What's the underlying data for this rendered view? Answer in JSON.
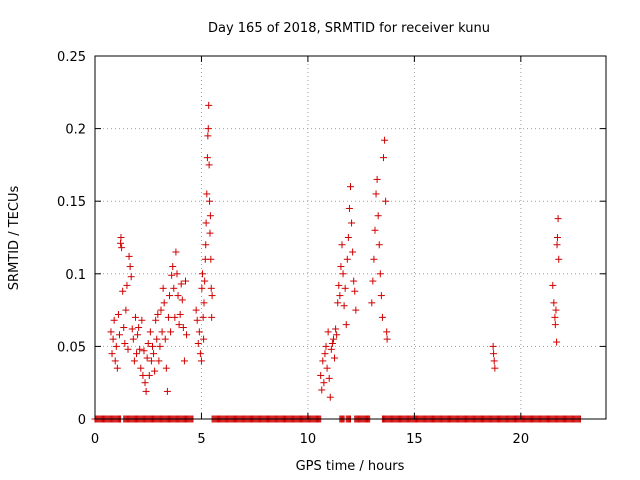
{
  "chart_data": {
    "type": "scatter",
    "title": "Day 165 of 2018, SRMTID for receiver kunu",
    "xlabel": "GPS time / hours",
    "ylabel": "SRMTID / TECUs",
    "xlim": [
      0,
      24
    ],
    "ylim": [
      0,
      0.25
    ],
    "xticks": [
      0,
      5,
      10,
      15,
      20
    ],
    "xtick_labels": [
      "0",
      "5",
      "10",
      "15",
      "20"
    ],
    "yticks": [
      0,
      0.05,
      0.1,
      0.15,
      0.2,
      0.25
    ],
    "ytick_labels": [
      "0",
      "0.05",
      "0.1",
      "0.15",
      "0.2",
      "0.25"
    ],
    "grid": true,
    "marker": "+",
    "color": "#d00000",
    "series": [
      {
        "name": "SRMTID",
        "points": [
          [
            0.75,
            0.06
          ],
          [
            0.8,
            0.045
          ],
          [
            0.85,
            0.055
          ],
          [
            0.9,
            0.068
          ],
          [
            0.95,
            0.04
          ],
          [
            1.0,
            0.05
          ],
          [
            1.05,
            0.035
          ],
          [
            1.1,
            0.072
          ],
          [
            1.15,
            0.058
          ],
          [
            1.2,
            0.121
          ],
          [
            1.22,
            0.125
          ],
          [
            1.25,
            0.118
          ],
          [
            1.3,
            0.088
          ],
          [
            1.35,
            0.063
          ],
          [
            1.4,
            0.052
          ],
          [
            1.45,
            0.075
          ],
          [
            1.5,
            0.092
          ],
          [
            1.55,
            0.048
          ],
          [
            1.6,
            0.112
          ],
          [
            1.65,
            0.105
          ],
          [
            1.7,
            0.098
          ],
          [
            1.75,
            0.062
          ],
          [
            1.8,
            0.055
          ],
          [
            1.85,
            0.04
          ],
          [
            1.9,
            0.07
          ],
          [
            1.95,
            0.045
          ],
          [
            2.0,
            0.058
          ],
          [
            2.05,
            0.063
          ],
          [
            2.1,
            0.048
          ],
          [
            2.15,
            0.035
          ],
          [
            2.2,
            0.068
          ],
          [
            2.25,
            0.03
          ],
          [
            2.3,
            0.047
          ],
          [
            2.35,
            0.025
          ],
          [
            2.4,
            0.019
          ],
          [
            2.45,
            0.042
          ],
          [
            2.5,
            0.052
          ],
          [
            2.55,
            0.03
          ],
          [
            2.6,
            0.06
          ],
          [
            2.65,
            0.04
          ],
          [
            2.7,
            0.05
          ],
          [
            2.75,
            0.045
          ],
          [
            2.8,
            0.033
          ],
          [
            2.85,
            0.068
          ],
          [
            2.9,
            0.055
          ],
          [
            2.95,
            0.072
          ],
          [
            3.0,
            0.04
          ],
          [
            3.05,
            0.05
          ],
          [
            3.1,
            0.075
          ],
          [
            3.15,
            0.06
          ],
          [
            3.2,
            0.09
          ],
          [
            3.25,
            0.08
          ],
          [
            3.3,
            0.055
          ],
          [
            3.35,
            0.035
          ],
          [
            3.4,
            0.019
          ],
          [
            3.45,
            0.07
          ],
          [
            3.5,
            0.085
          ],
          [
            3.55,
            0.06
          ],
          [
            3.6,
            0.099
          ],
          [
            3.65,
            0.105
          ],
          [
            3.7,
            0.09
          ],
          [
            3.75,
            0.07
          ],
          [
            3.8,
            0.115
          ],
          [
            3.85,
            0.1
          ],
          [
            3.9,
            0.085
          ],
          [
            3.95,
            0.065
          ],
          [
            4.0,
            0.072
          ],
          [
            4.05,
            0.093
          ],
          [
            4.1,
            0.082
          ],
          [
            4.15,
            0.063
          ],
          [
            4.2,
            0.04
          ],
          [
            4.25,
            0.095
          ],
          [
            4.3,
            0.058
          ],
          [
            4.75,
            0.075
          ],
          [
            4.8,
            0.068
          ],
          [
            4.85,
            0.052
          ],
          [
            4.9,
            0.06
          ],
          [
            4.95,
            0.045
          ],
          [
            5.0,
            0.04
          ],
          [
            5.02,
            0.09
          ],
          [
            5.05,
            0.1
          ],
          [
            5.08,
            0.07
          ],
          [
            5.1,
            0.055
          ],
          [
            5.12,
            0.08
          ],
          [
            5.15,
            0.095
          ],
          [
            5.18,
            0.11
          ],
          [
            5.2,
            0.12
          ],
          [
            5.22,
            0.135
          ],
          [
            5.25,
            0.155
          ],
          [
            5.28,
            0.18
          ],
          [
            5.3,
            0.195
          ],
          [
            5.32,
            0.2
          ],
          [
            5.34,
            0.216
          ],
          [
            5.36,
            0.175
          ],
          [
            5.38,
            0.15
          ],
          [
            5.4,
            0.128
          ],
          [
            5.42,
            0.14
          ],
          [
            5.44,
            0.11
          ],
          [
            5.46,
            0.09
          ],
          [
            5.48,
            0.07
          ],
          [
            5.5,
            0.085
          ],
          [
            10.6,
            0.03
          ],
          [
            10.65,
            0.02
          ],
          [
            10.7,
            0.04
          ],
          [
            10.75,
            0.025
          ],
          [
            10.8,
            0.045
          ],
          [
            10.85,
            0.05
          ],
          [
            10.9,
            0.035
          ],
          [
            10.95,
            0.06
          ],
          [
            11.0,
            0.028
          ],
          [
            11.05,
            0.015
          ],
          [
            11.1,
            0.048
          ],
          [
            11.15,
            0.052
          ],
          [
            11.2,
            0.055
          ],
          [
            11.25,
            0.042
          ],
          [
            11.3,
            0.062
          ],
          [
            11.35,
            0.058
          ],
          [
            11.4,
            0.08
          ],
          [
            11.45,
            0.092
          ],
          [
            11.5,
            0.085
          ],
          [
            11.55,
            0.105
          ],
          [
            11.6,
            0.12
          ],
          [
            11.65,
            0.1
          ],
          [
            11.7,
            0.078
          ],
          [
            11.75,
            0.09
          ],
          [
            11.8,
            0.065
          ],
          [
            11.85,
            0.11
          ],
          [
            11.9,
            0.125
          ],
          [
            11.95,
            0.145
          ],
          [
            12.0,
            0.16
          ],
          [
            12.05,
            0.135
          ],
          [
            12.1,
            0.115
          ],
          [
            12.15,
            0.095
          ],
          [
            12.2,
            0.088
          ],
          [
            12.25,
            0.075
          ],
          [
            13.0,
            0.08
          ],
          [
            13.05,
            0.095
          ],
          [
            13.1,
            0.11
          ],
          [
            13.15,
            0.13
          ],
          [
            13.2,
            0.155
          ],
          [
            13.25,
            0.165
          ],
          [
            13.3,
            0.14
          ],
          [
            13.35,
            0.12
          ],
          [
            13.4,
            0.1
          ],
          [
            13.45,
            0.085
          ],
          [
            13.5,
            0.07
          ],
          [
            13.55,
            0.18
          ],
          [
            13.6,
            0.192
          ],
          [
            13.65,
            0.15
          ],
          [
            13.7,
            0.06
          ],
          [
            13.72,
            0.055
          ],
          [
            18.7,
            0.05
          ],
          [
            18.72,
            0.045
          ],
          [
            18.75,
            0.04
          ],
          [
            18.78,
            0.035
          ],
          [
            21.5,
            0.092
          ],
          [
            21.55,
            0.08
          ],
          [
            21.6,
            0.07
          ],
          [
            21.62,
            0.065
          ],
          [
            21.65,
            0.075
          ],
          [
            21.68,
            0.053
          ],
          [
            21.7,
            0.12
          ],
          [
            21.72,
            0.125
          ],
          [
            21.75,
            0.138
          ],
          [
            21.78,
            0.11
          ]
        ]
      }
    ],
    "zero_ranges": [
      [
        0,
        0.6
      ],
      [
        0.65,
        1.2
      ],
      [
        1.35,
        4.6
      ],
      [
        5.5,
        10.6
      ],
      [
        11.5,
        11.7
      ],
      [
        11.8,
        12.0
      ],
      [
        12.2,
        12.9
      ],
      [
        13.5,
        22.8
      ]
    ]
  }
}
